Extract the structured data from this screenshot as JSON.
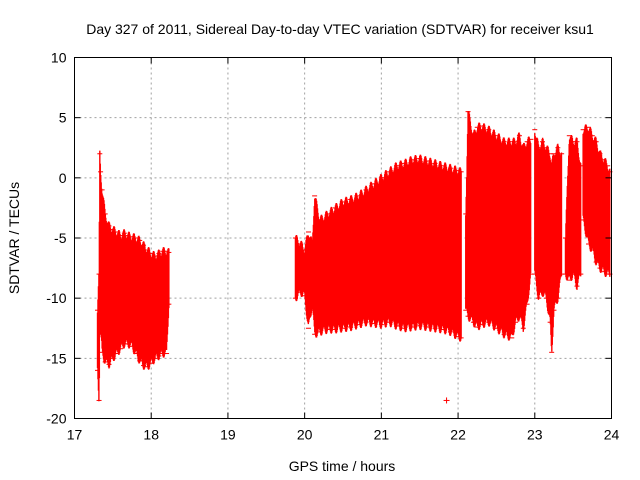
{
  "chart_data": {
    "type": "errorbar",
    "title": "Day 327 of 2011, Sidereal Day-to-day VTEC variation (SDTVAR) for receiver ksu1",
    "xlabel": "GPS time / hours",
    "ylabel": "SDTVAR / TECUs",
    "xlim": [
      17,
      24
    ],
    "ylim": [
      -20,
      10
    ],
    "xticks": [
      17,
      18,
      19,
      20,
      21,
      22,
      23,
      24
    ],
    "yticks": [
      -20,
      -15,
      -10,
      -5,
      0,
      5,
      10
    ],
    "grid": true,
    "series_color": "#ff0000",
    "segments": [
      {
        "x": [
          17.3,
          17.32,
          17.33,
          17.34,
          17.36,
          17.4,
          17.45,
          17.5,
          17.55,
          17.6,
          17.65,
          17.7,
          17.75,
          17.8,
          17.85,
          17.9,
          17.95,
          18.0,
          18.05,
          18.1,
          18.15,
          18.2,
          18.23
        ],
        "upper": [
          -11.0,
          -8.0,
          2.0,
          0.5,
          -1.0,
          -3.0,
          -4.0,
          -4.3,
          -4.5,
          -4.8,
          -4.6,
          -4.8,
          -4.9,
          -5.0,
          -5.2,
          -5.6,
          -6.0,
          -6.3,
          -6.5,
          -6.3,
          -6.1,
          -6.1,
          -6.2
        ],
        "lower": [
          -16.0,
          -18.5,
          -13.0,
          -12.5,
          -14.5,
          -15.3,
          -15.5,
          -15.0,
          -14.6,
          -14.2,
          -13.8,
          -13.8,
          -14.0,
          -14.6,
          -15.2,
          -15.6,
          -15.7,
          -15.4,
          -15.0,
          -14.8,
          -14.6,
          -14.6,
          -10.5
        ]
      },
      {
        "x": [
          19.88,
          19.95,
          20.0,
          20.05,
          20.1,
          20.13,
          20.2,
          20.3,
          20.4,
          20.5,
          20.6,
          20.7,
          20.8,
          20.9,
          21.0,
          21.1,
          21.2,
          21.3,
          21.4,
          21.5,
          21.6,
          21.7,
          21.8,
          21.9,
          22.0,
          22.04
        ],
        "upper": [
          -5.0,
          -5.5,
          -6.0,
          -4.5,
          -5.5,
          -1.5,
          -3.5,
          -3.0,
          -2.5,
          -2.0,
          -1.8,
          -1.5,
          -1.0,
          -0.5,
          0.0,
          0.5,
          1.0,
          1.2,
          1.5,
          1.6,
          1.4,
          1.2,
          1.0,
          0.8,
          0.6,
          0.5
        ],
        "lower": [
          -10.0,
          -9.5,
          -9.8,
          -12.5,
          -10.5,
          -13.0,
          -12.8,
          -12.6,
          -12.6,
          -12.5,
          -12.4,
          -12.2,
          -12.0,
          -12.1,
          -12.2,
          -12.0,
          -12.3,
          -12.5,
          -12.4,
          -12.3,
          -12.4,
          -12.5,
          -12.6,
          -12.8,
          -13.2,
          -13.3
        ]
      },
      {
        "x": [
          22.1,
          22.13,
          22.2,
          22.25,
          22.3,
          22.4,
          22.5,
          22.6,
          22.7,
          22.75,
          22.8,
          22.85,
          22.9,
          22.95
        ],
        "upper": [
          -3.0,
          5.5,
          3.5,
          4.2,
          4.3,
          4.0,
          3.5,
          3.0,
          3.0,
          3.0,
          3.5,
          2.5,
          3.0,
          3.2
        ],
        "lower": [
          -11.0,
          -11.5,
          -12.0,
          -12.4,
          -12.2,
          -12.0,
          -12.5,
          -13.0,
          -13.3,
          -12.0,
          -11.5,
          -12.5,
          -10.5,
          -8.0
        ]
      },
      {
        "x": [
          23.0,
          23.05,
          23.1,
          23.15,
          23.2,
          23.22,
          23.25,
          23.3,
          23.35
        ],
        "upper": [
          4.0,
          2.5,
          3.0,
          2.5,
          2.0,
          1.0,
          2.0,
          2.5,
          2.0
        ],
        "lower": [
          -8.0,
          -10.0,
          -9.5,
          -10.0,
          -12.0,
          -14.5,
          -11.0,
          -10.0,
          -8.0
        ]
      },
      {
        "x": [
          23.4,
          23.45,
          23.5,
          23.55,
          23.6
        ],
        "upper": [
          -5.0,
          3.5,
          3.0,
          3.0,
          1.0
        ],
        "lower": [
          -8.0,
          -8.5,
          -8.0,
          -9.0,
          -8.0
        ]
      },
      {
        "x": [
          23.63,
          23.7,
          23.75,
          23.8,
          23.85,
          23.9,
          23.95,
          23.98
        ],
        "upper": [
          4.0,
          4.2,
          3.5,
          3.0,
          2.0,
          1.5,
          1.0,
          0.5
        ],
        "lower": [
          -3.5,
          -5.5,
          -6.0,
          -7.0,
          -7.5,
          -7.8,
          -8.0,
          -8.0
        ]
      }
    ],
    "outliers": [
      {
        "x": 21.85,
        "y": -18.5
      }
    ]
  }
}
